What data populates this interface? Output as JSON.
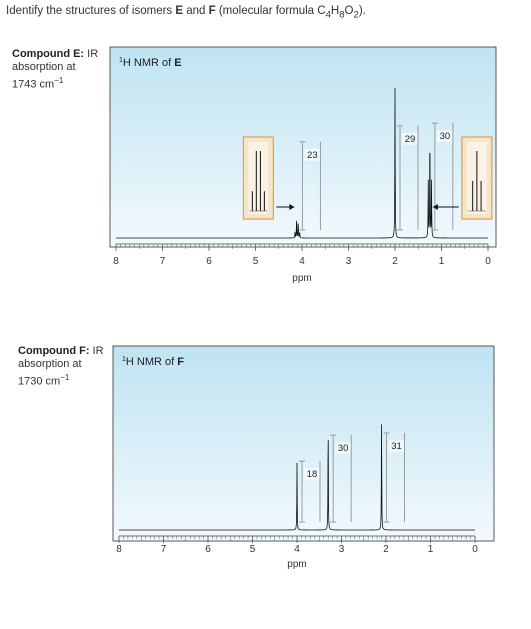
{
  "question": {
    "pre": "Identify the structures of isomers ",
    "E": "E",
    "and": " and ",
    "F": "F",
    "mf_pre": " (molecular formula C",
    "n1": "4",
    "h": "H",
    "n2": "8",
    "o": "O",
    "n3": "2",
    "mf_post": ")."
  },
  "compound_E": {
    "name": "Compound E:",
    "ir_word": " IR",
    "line2": "absorption at",
    "ir_value": "1743 cm",
    "ir_exp": "−1"
  },
  "compound_F": {
    "name": "Compound F:",
    "ir_word": " IR",
    "line2": "absorption at",
    "ir_value": "1730 cm",
    "ir_exp": "−1"
  },
  "colors": {
    "panel_top": "#bfe3f2",
    "panel_bottom": "#f2fafd",
    "inset_bg": "#f5e4c8",
    "inset_border": "#e0a24a",
    "integral": "#888888"
  },
  "chart_data": [
    {
      "type": "line",
      "title_super": "1",
      "title_main": "H NMR of ",
      "title_bold": "E",
      "xlabel": "ppm",
      "xlim": [
        8,
        0
      ],
      "x_reversed": true,
      "xticks": [
        "8",
        "7",
        "6",
        "5",
        "4",
        "3",
        "2",
        "1",
        "0"
      ],
      "peaks": [
        {
          "ppm": 4.1,
          "multiplicity": "quartet",
          "rel_height": 0.12,
          "integral": "23"
        },
        {
          "ppm": 2.0,
          "multiplicity": "singlet",
          "rel_height": 1.0,
          "integral": "29"
        },
        {
          "ppm": 1.25,
          "multiplicity": "triplet",
          "rel_height": 0.75,
          "integral": "30"
        }
      ],
      "insets": [
        {
          "ppm": 4.1,
          "multiplicity": "quartet"
        },
        {
          "ppm": 1.25,
          "multiplicity": "triplet"
        }
      ]
    },
    {
      "type": "line",
      "title_super": "1",
      "title_main": "H NMR of ",
      "title_bold": "F",
      "xlabel": "ppm",
      "xlim": [
        8,
        0
      ],
      "x_reversed": true,
      "xticks": [
        "8",
        "7",
        "6",
        "5",
        "4",
        "3",
        "2",
        "1",
        "0"
      ],
      "peaks": [
        {
          "ppm": 4.0,
          "multiplicity": "singlet",
          "rel_height": 0.55,
          "integral": "18"
        },
        {
          "ppm": 3.3,
          "multiplicity": "singlet",
          "rel_height": 0.92,
          "integral": "30"
        },
        {
          "ppm": 2.1,
          "multiplicity": "singlet",
          "rel_height": 0.92,
          "integral": "31"
        }
      ]
    }
  ]
}
